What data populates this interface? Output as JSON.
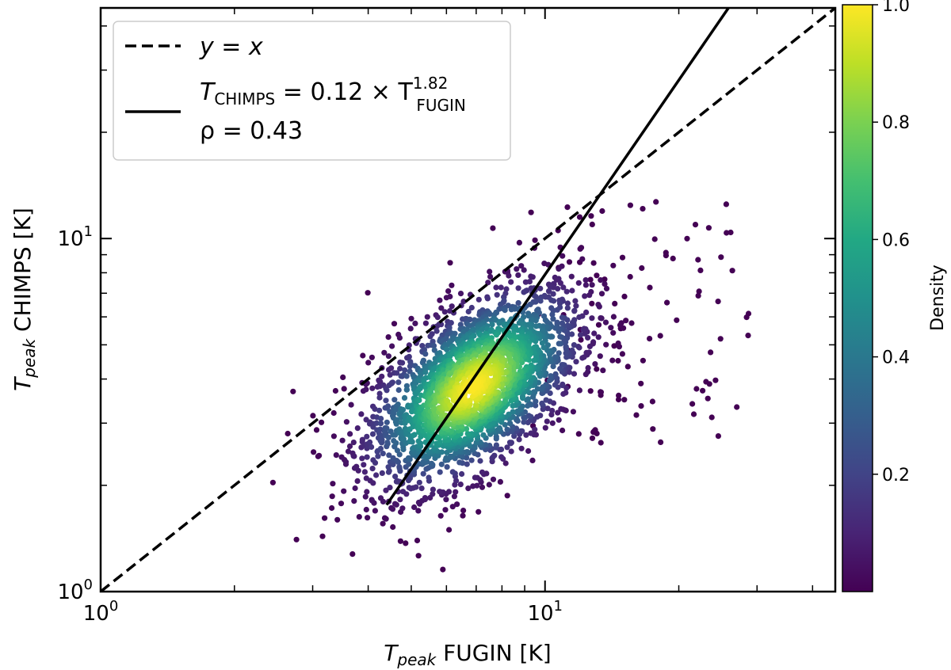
{
  "chart_data": {
    "type": "scatter",
    "xlabel": {
      "main": "T",
      "sub": "peak",
      "rest": " FUGIN [K]"
    },
    "ylabel": {
      "main": "T",
      "sub": "peak",
      "rest": " CHIMPS [K]"
    },
    "xscale": "log",
    "yscale": "log",
    "xlim": [
      1,
      45
    ],
    "ylim": [
      1,
      45
    ],
    "xticks": [
      {
        "value": 1,
        "base": "10",
        "exp": "0"
      },
      {
        "value": 10,
        "base": "10",
        "exp": "1"
      }
    ],
    "yticks": [
      {
        "value": 1,
        "base": "10",
        "exp": "0"
      },
      {
        "value": 10,
        "base": "10",
        "exp": "1"
      }
    ],
    "grid": false,
    "legend": {
      "position": "top-left",
      "entries": [
        {
          "style": "dashed",
          "text": "y = x"
        },
        {
          "style": "solid",
          "line1_prefix": "T",
          "line1_sub": "CHIMPS",
          "line1_mid": " = 0.12 × T",
          "line1_sup": "1.82",
          "line1_sub2": "FUGIN",
          "line2": "ρ = 0.43"
        }
      ]
    },
    "series": [
      {
        "type": "line",
        "style": "dashed",
        "x": [
          1,
          45
        ],
        "y": [
          1,
          45
        ]
      },
      {
        "type": "line",
        "style": "solid",
        "x": [
          4.4,
          28
        ],
        "y": [
          1.76,
          52
        ]
      }
    ],
    "scatter_summary": {
      "center": [
        6.9,
        3.8
      ],
      "spread_log": [
        0.12,
        0.14
      ],
      "n_points": 2600
    },
    "colorbar": {
      "label": "Density",
      "colormap": "viridis",
      "range": [
        0,
        1
      ],
      "ticks": [
        "0.2",
        "0.4",
        "0.6",
        "0.8",
        "1.0"
      ],
      "tick_values": [
        0.2,
        0.4,
        0.6,
        0.8,
        1.0
      ]
    }
  }
}
